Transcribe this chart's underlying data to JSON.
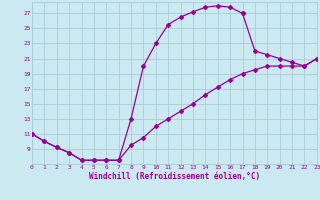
{
  "xlabel": "Windchill (Refroidissement éolien,°C)",
  "bg_color": "#cbe9f0",
  "grid_color": "#aaccd8",
  "line_color": "#990099",
  "curve1_x": [
    0,
    1,
    2,
    3,
    4,
    5,
    6,
    7,
    8,
    9,
    10,
    11,
    12,
    13,
    14,
    15,
    16,
    17
  ],
  "curve1_y": [
    11,
    10,
    9.2,
    8.5,
    7.5,
    7.5,
    7.5,
    7.5,
    13,
    20,
    23,
    25.5,
    26.5,
    27.2,
    27.8,
    28,
    27.8,
    27
  ],
  "curve2_x": [
    0,
    1,
    2,
    3,
    4,
    5,
    6,
    7,
    8,
    9,
    10,
    11,
    12,
    13,
    14,
    15,
    16,
    17,
    18,
    19,
    20,
    21,
    22,
    23
  ],
  "curve2_y": [
    11,
    10,
    9.2,
    8.5,
    7.5,
    7.5,
    7.5,
    7.5,
    9.5,
    10.5,
    12,
    13,
    14,
    15,
    16.2,
    17.2,
    18.2,
    19,
    19.5,
    20,
    20,
    20,
    20,
    21
  ],
  "curve3_x": [
    17,
    18,
    19,
    20,
    21,
    22,
    23
  ],
  "curve3_y": [
    27,
    22,
    21.5,
    21,
    20.5,
    20,
    21
  ],
  "xlim": [
    0,
    23
  ],
  "ylim": [
    7,
    28.5
  ],
  "yticks": [
    9,
    11,
    13,
    15,
    17,
    19,
    21,
    23,
    25,
    27
  ],
  "xticks": [
    0,
    1,
    2,
    3,
    4,
    5,
    6,
    7,
    8,
    9,
    10,
    11,
    12,
    13,
    14,
    15,
    16,
    17,
    18,
    19,
    20,
    21,
    22,
    23
  ],
  "marker": "D",
  "markersize": 2.0,
  "linewidth": 0.9,
  "tick_fontsize": 4.5,
  "xlabel_fontsize": 5.5
}
